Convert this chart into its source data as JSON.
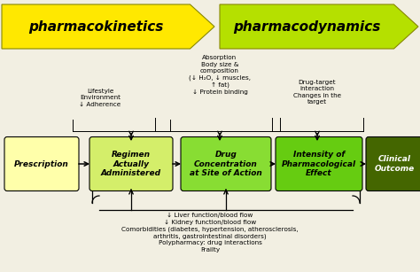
{
  "bg_color": "#f2efe2",
  "arrow1_label": "pharmacokinetics",
  "arrow2_label": "pharmacodynamics",
  "arrow1_color": "#ffe800",
  "arrow2_color": "#b5e000",
  "box_colors": {
    "prescription": "#ffffaa",
    "regimen": "#d4ee6a",
    "drug_conc": "#88dd33",
    "intensity": "#66cc11",
    "clinical": "#446600"
  },
  "box_labels": {
    "prescription": "Prescription",
    "regimen": "Regimen\nActually\nAdministered",
    "drug_conc": "Drug\nConcentration\nat Site of Action",
    "intensity": "Intensity of\nPharmacological\nEffect",
    "clinical": "Clinical\nOutcome"
  },
  "top_annotations": {
    "lifestyle": "Lifestyle\nEnvironment\n↓ Adherence",
    "absorption": "Absorption\nBody size &\ncomposition\n(↓ H₂O, ↓ muscles,\n↑ fat)\n↓ Protein binding",
    "drug_target": "Drug-target\ninteraction\nChanges in the\ntarget"
  },
  "bottom_text": "↓ Liver function/blood flow\n↓ Kidney function/blood flow\nComorbidities (diabetes, hypertension, atherosclerosis,\narthritis, gastrointestinal disorders)\nPolypharmacy: drug interactions\nFrailty"
}
